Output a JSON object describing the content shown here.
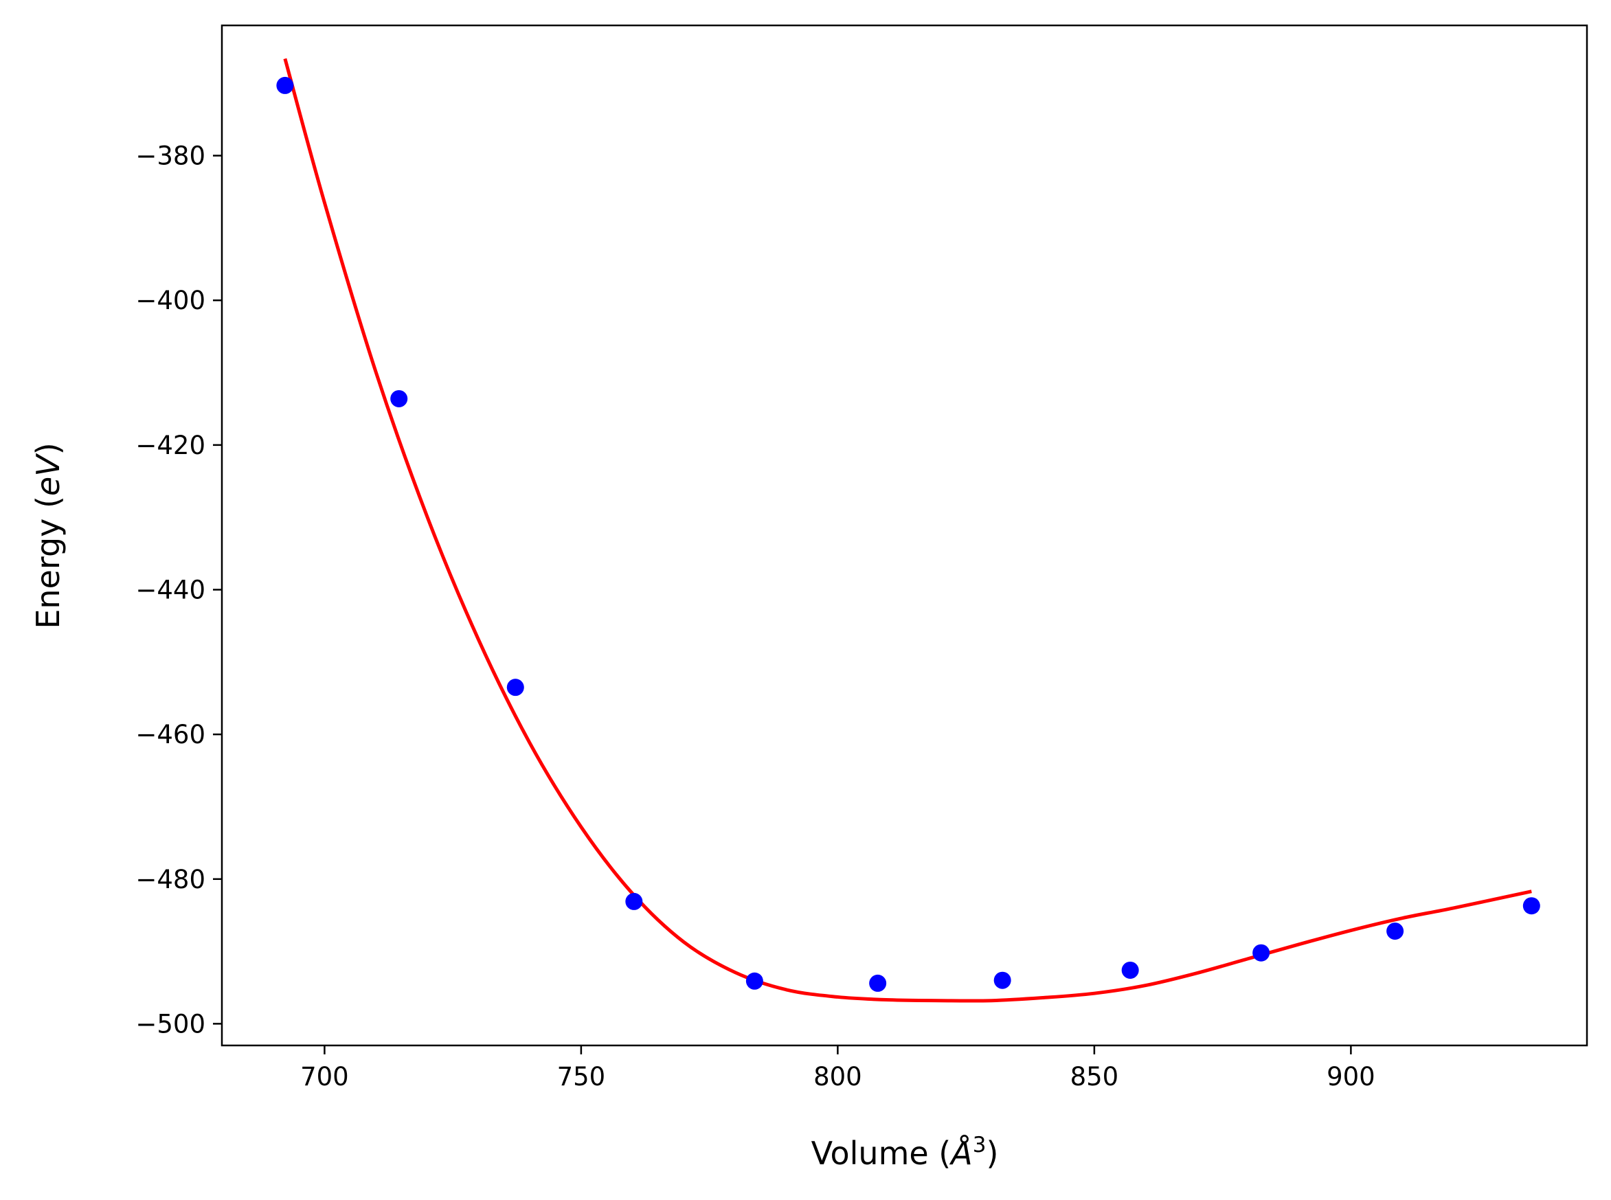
{
  "chart_data": {
    "type": "scatter",
    "title": "",
    "xlabel": "Volume (",
    "xlabel_unit": "Å",
    "xlabel_power": "3",
    "xlabel_close": ")",
    "ylabel": "Energy (",
    "ylabel_unit": "eV",
    "ylabel_close": ")",
    "xlim": [
      680,
      946
    ],
    "ylim": [
      -503,
      -362
    ],
    "x_ticks": [
      700,
      750,
      800,
      850,
      900
    ],
    "y_ticks": [
      -380,
      -400,
      -420,
      -440,
      -460,
      -480,
      -500
    ],
    "x_tick_labels": [
      "700",
      "750",
      "800",
      "850",
      "900"
    ],
    "y_tick_labels": [
      "−380",
      "−400",
      "−420",
      "−440",
      "−460",
      "−480",
      "−500"
    ],
    "grid": false,
    "series": [
      {
        "kind": "points",
        "color": "#0000ff",
        "x": [
          692.3,
          714.5,
          737.2,
          760.3,
          783.8,
          807.8,
          832.1,
          857.0,
          882.5,
          908.6,
          935.2
        ],
        "y": [
          -370.3,
          -413.6,
          -453.5,
          -483.1,
          -494.1,
          -494.4,
          -494.0,
          -492.6,
          -490.2,
          -487.2,
          -483.7
        ]
      },
      {
        "kind": "fit-curve",
        "color": "#ff0000",
        "x": [
          692.3,
          700,
          710,
          720,
          730,
          740,
          750,
          760,
          770,
          780,
          790,
          800,
          810,
          820,
          830,
          840,
          850,
          860,
          870,
          880,
          890,
          900,
          910,
          920,
          935.2
        ],
        "y": [
          -366.6,
          -386.5,
          -409.9,
          -429.9,
          -446.9,
          -461.2,
          -472.8,
          -482.0,
          -488.7,
          -492.9,
          -495.3,
          -496.3,
          -496.7,
          -496.8,
          -496.8,
          -496.4,
          -495.8,
          -494.7,
          -493.0,
          -491.0,
          -489.0,
          -487.1,
          -485.4,
          -484.0,
          -481.7
        ]
      }
    ]
  }
}
